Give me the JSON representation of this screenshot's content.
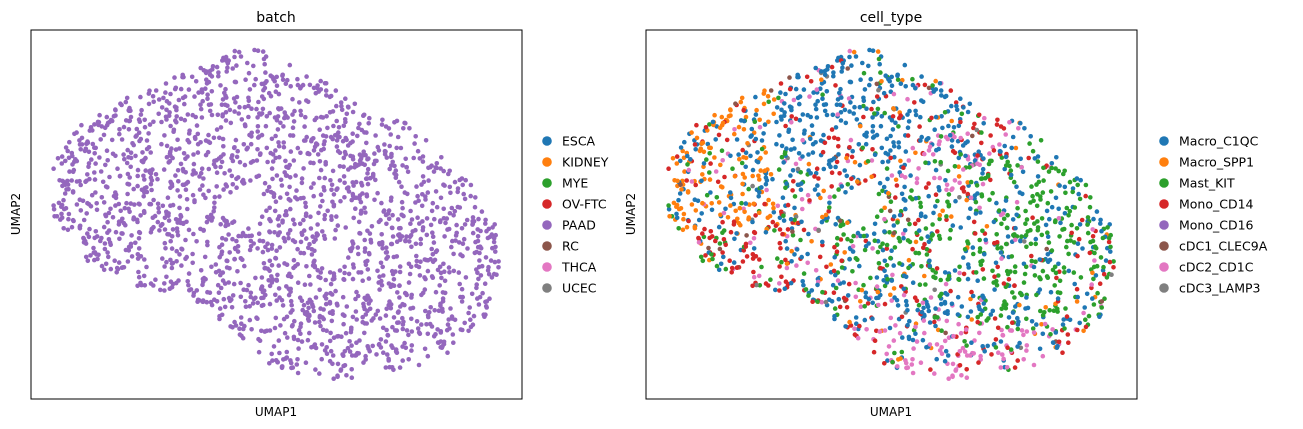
{
  "chart_data": [
    {
      "type": "scatter",
      "title": "batch",
      "xlabel": "UMAP1",
      "ylabel": "UMAP2",
      "grid": false,
      "xticks": false,
      "yticks": false,
      "xlim": [
        0,
        10
      ],
      "ylim": [
        0,
        10
      ],
      "legend": {
        "placement": "right",
        "entries": [
          {
            "label": "ESCA",
            "color": "#1f77b4"
          },
          {
            "label": "KIDNEY",
            "color": "#ff7f0e"
          },
          {
            "label": "MYE",
            "color": "#2ca02c"
          },
          {
            "label": "OV-FTC",
            "color": "#d62728"
          },
          {
            "label": "PAAD",
            "color": "#9467bd"
          },
          {
            "label": "RC",
            "color": "#8c564b"
          },
          {
            "label": "THCA",
            "color": "#e377c2"
          },
          {
            "label": "UCEC",
            "color": "#7f7f7f"
          }
        ]
      },
      "all_points_category": "PAAD",
      "approx_point_count": 2000
    },
    {
      "type": "scatter",
      "title": "cell_type",
      "xlabel": "UMAP1",
      "ylabel": "UMAP2",
      "grid": false,
      "xticks": false,
      "yticks": false,
      "xlim": [
        0,
        10
      ],
      "ylim": [
        0,
        10
      ],
      "legend": {
        "placement": "right",
        "entries": [
          {
            "label": "Macro_C1QC",
            "color": "#1f77b4"
          },
          {
            "label": "Macro_SPP1",
            "color": "#ff7f0e"
          },
          {
            "label": "Mast_KIT",
            "color": "#2ca02c"
          },
          {
            "label": "Mono_CD14",
            "color": "#d62728"
          },
          {
            "label": "Mono_CD16",
            "color": "#9467bd"
          },
          {
            "label": "cDC1_CLEC9A",
            "color": "#8c564b"
          },
          {
            "label": "cDC2_CD1C",
            "color": "#e377c2"
          },
          {
            "label": "cDC3_LAMP3",
            "color": "#7f7f7f"
          }
        ]
      },
      "approx_point_count": 2000
    }
  ]
}
